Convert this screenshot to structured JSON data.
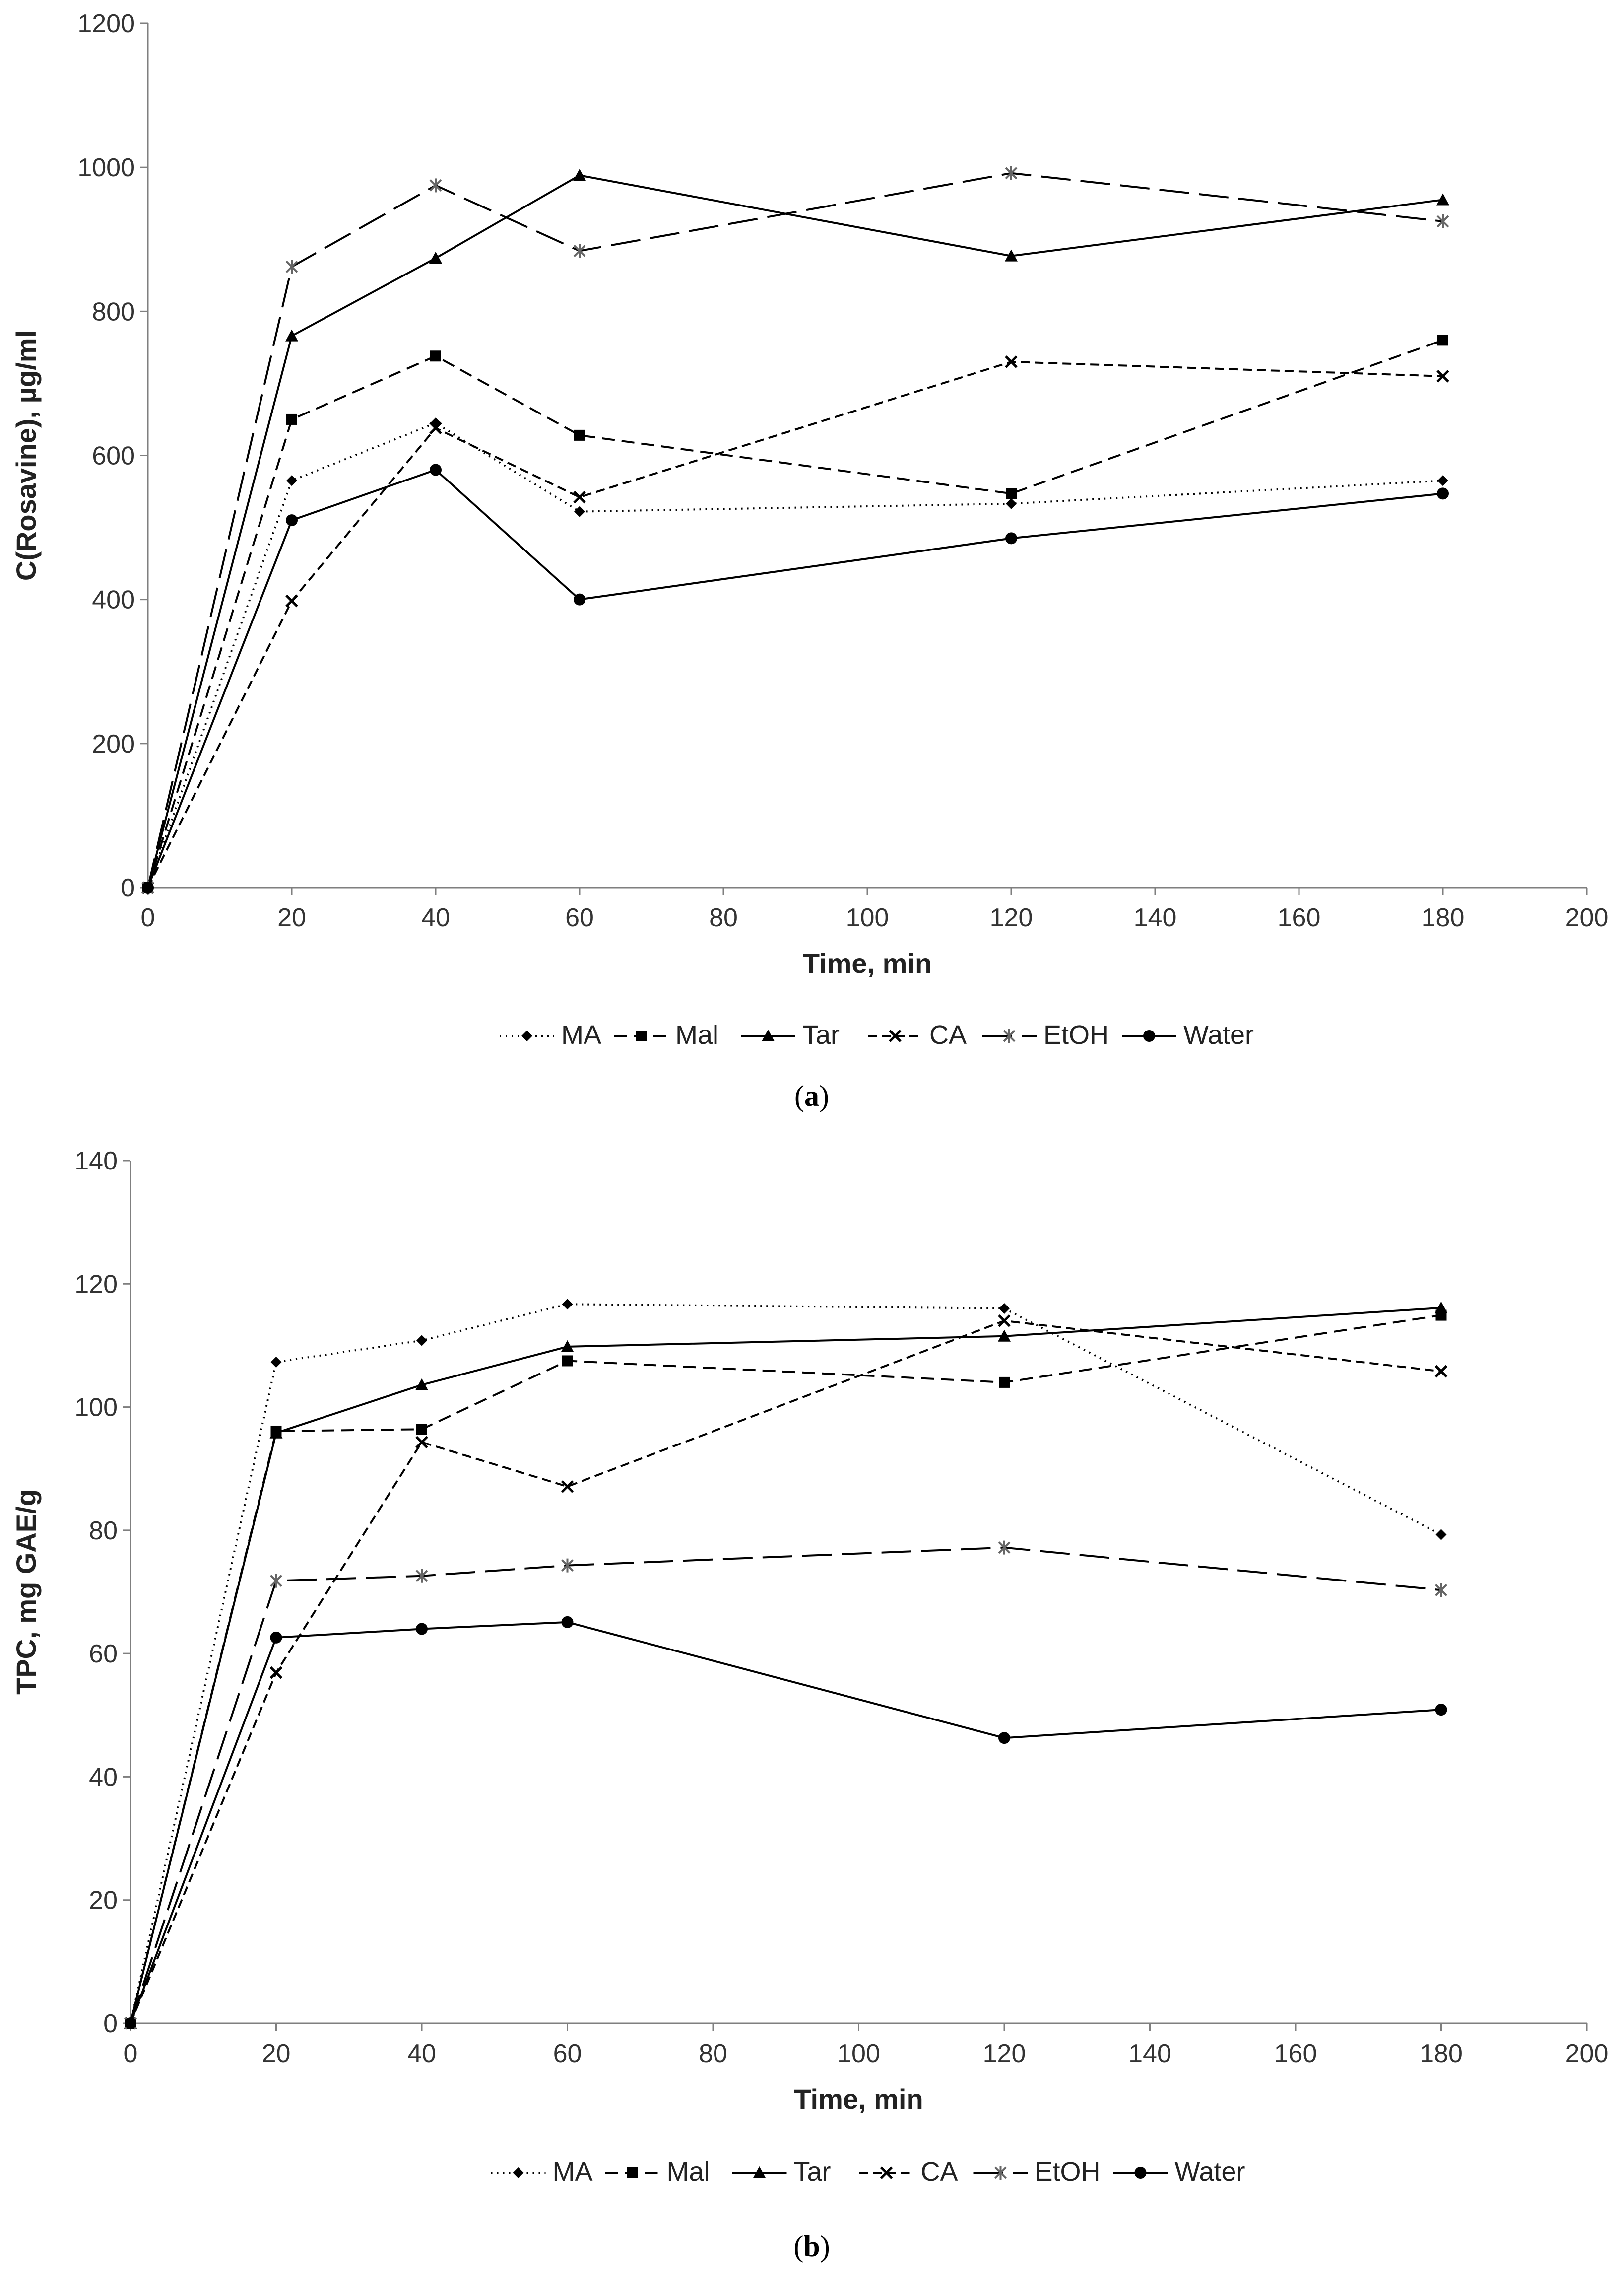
{
  "figure": {
    "captions": [
      "a",
      "b"
    ]
  },
  "series_styles": [
    {
      "name": "MA",
      "dash": "3,9",
      "marker": "diamond",
      "color": "#000000"
    },
    {
      "name": "Mal",
      "dash": "26,14",
      "marker": "square",
      "color": "#000000"
    },
    {
      "name": "Tar",
      "dash": "",
      "marker": "triangle",
      "color": "#000000"
    },
    {
      "name": "CA",
      "dash": "18,10",
      "marker": "x",
      "color": "#000000"
    },
    {
      "name": "EtOH",
      "dash": "60,20",
      "marker": "star",
      "color": "#000000"
    },
    {
      "name": "Water",
      "dash": "",
      "marker": "circle",
      "color": "#000000"
    }
  ],
  "chart_data": [
    {
      "type": "line",
      "title": "",
      "xlabel": "Time, min",
      "ylabel": "C(Rosavine),  µg/ml",
      "xlim": [
        0,
        200
      ],
      "ylim": [
        0,
        1200
      ],
      "x_ticks": [
        0,
        20,
        40,
        60,
        80,
        100,
        120,
        140,
        160,
        180,
        200
      ],
      "y_ticks": [
        0,
        200,
        400,
        600,
        800,
        1000,
        1200
      ],
      "grid": false,
      "legend_position": "bottom",
      "x": [
        0,
        20,
        40,
        60,
        120,
        180
      ],
      "series": [
        {
          "name": "MA",
          "values": [
            0,
            565,
            645,
            522,
            533,
            565
          ]
        },
        {
          "name": "Mal",
          "values": [
            0,
            650,
            738,
            628,
            547,
            760
          ]
        },
        {
          "name": "Tar",
          "values": [
            0,
            766,
            874,
            989,
            877,
            955
          ]
        },
        {
          "name": "CA",
          "values": [
            0,
            398,
            638,
            542,
            730,
            710
          ]
        },
        {
          "name": "EtOH",
          "values": [
            0,
            862,
            975,
            884,
            992,
            925
          ]
        },
        {
          "name": "Water",
          "values": [
            0,
            510,
            580,
            400,
            485,
            547
          ]
        }
      ]
    },
    {
      "type": "line",
      "title": "",
      "xlabel": "Time, min",
      "ylabel": "TPC, mg GAE/g",
      "xlim": [
        0,
        200
      ],
      "ylim": [
        0,
        140
      ],
      "x_ticks": [
        0,
        20,
        40,
        60,
        80,
        100,
        120,
        140,
        160,
        180,
        200
      ],
      "y_ticks": [
        0,
        20,
        40,
        60,
        80,
        100,
        120,
        140
      ],
      "grid": false,
      "legend_position": "bottom",
      "x": [
        0,
        20,
        40,
        60,
        120,
        180
      ],
      "series": [
        {
          "name": "MA",
          "values": [
            0,
            107.3,
            110.8,
            116.7,
            116.0,
            79.3
          ]
        },
        {
          "name": "Mal",
          "values": [
            0,
            96.1,
            96.4,
            107.5,
            104.0,
            114.9
          ]
        },
        {
          "name": "Tar",
          "values": [
            0,
            95.8,
            103.6,
            109.8,
            111.5,
            116.1
          ]
        },
        {
          "name": "CA",
          "values": [
            0,
            56.9,
            94.3,
            87.1,
            114.0,
            105.8
          ]
        },
        {
          "name": "EtOH",
          "values": [
            0,
            71.8,
            72.6,
            74.3,
            77.2,
            70.3
          ]
        },
        {
          "name": "Water",
          "values": [
            0,
            62.6,
            64.0,
            65.1,
            46.3,
            50.9
          ]
        }
      ]
    }
  ]
}
